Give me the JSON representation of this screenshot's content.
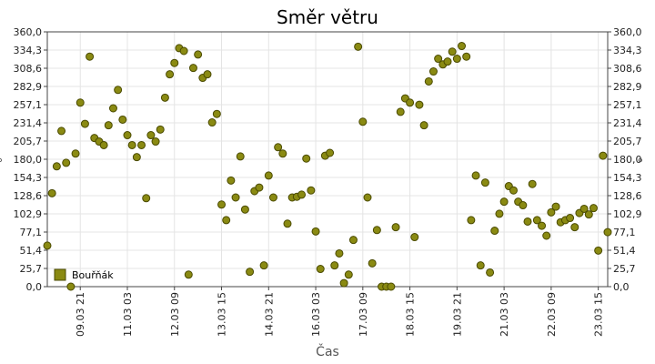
{
  "chart_data": {
    "type": "scatter",
    "title": "Směr větru",
    "xlabel": "Čas",
    "ylabel": "°",
    "ylim": [
      0,
      360
    ],
    "xlim": [
      "2021-03-09 00:00",
      "2021-03-23 21:00"
    ],
    "y_ticks": [
      "0,0",
      "25,7",
      "51,4",
      "77,1",
      "102,9",
      "128,6",
      "154,3",
      "180,0",
      "205,7",
      "231,4",
      "257,1",
      "282,9",
      "308,6",
      "334,3",
      "360,0"
    ],
    "x_ticks": [
      {
        "label": "09.03 21",
        "t": "2021-03-09 21:00"
      },
      {
        "label": "11.03 03",
        "t": "2021-03-11 03:00"
      },
      {
        "label": "12.03 09",
        "t": "2021-03-12 09:00"
      },
      {
        "label": "13.03 15",
        "t": "2021-03-13 15:00"
      },
      {
        "label": "14.03 21",
        "t": "2021-03-14 21:00"
      },
      {
        "label": "16.03 03",
        "t": "2021-03-16 03:00"
      },
      {
        "label": "17.03 09",
        "t": "2021-03-17 09:00"
      },
      {
        "label": "18.03 15",
        "t": "2021-03-18 15:00"
      },
      {
        "label": "19.03 21",
        "t": "2021-03-19 21:00"
      },
      {
        "label": "21.03 03",
        "t": "2021-03-21 03:00"
      },
      {
        "label": "22.03 09",
        "t": "2021-03-22 09:00"
      },
      {
        "label": "23.03 15",
        "t": "2021-03-23 15:00"
      }
    ],
    "grid": true,
    "legend": "bottom-left",
    "colors": {
      "marker_fill": "#8a8a12",
      "marker_stroke": "#4a4a00"
    },
    "series": [
      {
        "name": "Bouřňák",
        "points": [
          {
            "t": "2021-03-09 00:00",
            "v": 58
          },
          {
            "t": "2021-03-09 03:00",
            "v": 132
          },
          {
            "t": "2021-03-09 06:00",
            "v": 170
          },
          {
            "t": "2021-03-09 09:00",
            "v": 220
          },
          {
            "t": "2021-03-09 12:00",
            "v": 175
          },
          {
            "t": "2021-03-09 15:00",
            "v": 0
          },
          {
            "t": "2021-03-09 18:00",
            "v": 188
          },
          {
            "t": "2021-03-09 21:00",
            "v": 260
          },
          {
            "t": "2021-03-10 00:00",
            "v": 230
          },
          {
            "t": "2021-03-10 03:00",
            "v": 325
          },
          {
            "t": "2021-03-10 06:00",
            "v": 210
          },
          {
            "t": "2021-03-10 09:00",
            "v": 205
          },
          {
            "t": "2021-03-10 12:00",
            "v": 200
          },
          {
            "t": "2021-03-10 15:00",
            "v": 228
          },
          {
            "t": "2021-03-10 18:00",
            "v": 252
          },
          {
            "t": "2021-03-10 21:00",
            "v": 278
          },
          {
            "t": "2021-03-11 00:00",
            "v": 236
          },
          {
            "t": "2021-03-11 03:00",
            "v": 214
          },
          {
            "t": "2021-03-11 06:00",
            "v": 200
          },
          {
            "t": "2021-03-11 09:00",
            "v": 183
          },
          {
            "t": "2021-03-11 12:00",
            "v": 200
          },
          {
            "t": "2021-03-11 15:00",
            "v": 125
          },
          {
            "t": "2021-03-11 18:00",
            "v": 214
          },
          {
            "t": "2021-03-11 21:00",
            "v": 205
          },
          {
            "t": "2021-03-12 00:00",
            "v": 222
          },
          {
            "t": "2021-03-12 03:00",
            "v": 267
          },
          {
            "t": "2021-03-12 06:00",
            "v": 300
          },
          {
            "t": "2021-03-12 09:00",
            "v": 316
          },
          {
            "t": "2021-03-12 12:00",
            "v": 337
          },
          {
            "t": "2021-03-12 15:00",
            "v": 333
          },
          {
            "t": "2021-03-12 18:00",
            "v": 17
          },
          {
            "t": "2021-03-12 21:00",
            "v": 309
          },
          {
            "t": "2021-03-13 00:00",
            "v": 328
          },
          {
            "t": "2021-03-13 03:00",
            "v": 295
          },
          {
            "t": "2021-03-13 06:00",
            "v": 300
          },
          {
            "t": "2021-03-13 09:00",
            "v": 232
          },
          {
            "t": "2021-03-13 12:00",
            "v": 244
          },
          {
            "t": "2021-03-13 15:00",
            "v": 116
          },
          {
            "t": "2021-03-13 18:00",
            "v": 94
          },
          {
            "t": "2021-03-13 21:00",
            "v": 150
          },
          {
            "t": "2021-03-14 00:00",
            "v": 126
          },
          {
            "t": "2021-03-14 03:00",
            "v": 184
          },
          {
            "t": "2021-03-14 06:00",
            "v": 109
          },
          {
            "t": "2021-03-14 09:00",
            "v": 21
          },
          {
            "t": "2021-03-14 12:00",
            "v": 135
          },
          {
            "t": "2021-03-14 15:00",
            "v": 140
          },
          {
            "t": "2021-03-14 18:00",
            "v": 30
          },
          {
            "t": "2021-03-14 21:00",
            "v": 157
          },
          {
            "t": "2021-03-15 00:00",
            "v": 126
          },
          {
            "t": "2021-03-15 03:00",
            "v": 197
          },
          {
            "t": "2021-03-15 06:00",
            "v": 188
          },
          {
            "t": "2021-03-15 09:00",
            "v": 89
          },
          {
            "t": "2021-03-15 12:00",
            "v": 126
          },
          {
            "t": "2021-03-15 15:00",
            "v": 127
          },
          {
            "t": "2021-03-15 18:00",
            "v": 130
          },
          {
            "t": "2021-03-15 21:00",
            "v": 181
          },
          {
            "t": "2021-03-16 00:00",
            "v": 136
          },
          {
            "t": "2021-03-16 03:00",
            "v": 78
          },
          {
            "t": "2021-03-16 06:00",
            "v": 25
          },
          {
            "t": "2021-03-16 09:00",
            "v": 185
          },
          {
            "t": "2021-03-16 12:00",
            "v": 189
          },
          {
            "t": "2021-03-16 15:00",
            "v": 30
          },
          {
            "t": "2021-03-16 18:00",
            "v": 47
          },
          {
            "t": "2021-03-16 21:00",
            "v": 5
          },
          {
            "t": "2021-03-17 00:00",
            "v": 17
          },
          {
            "t": "2021-03-17 03:00",
            "v": 66
          },
          {
            "t": "2021-03-17 06:00",
            "v": 339
          },
          {
            "t": "2021-03-17 09:00",
            "v": 233
          },
          {
            "t": "2021-03-17 12:00",
            "v": 126
          },
          {
            "t": "2021-03-17 15:00",
            "v": 33
          },
          {
            "t": "2021-03-17 18:00",
            "v": 80
          },
          {
            "t": "2021-03-17 21:00",
            "v": 0
          },
          {
            "t": "2021-03-18 00:00",
            "v": 0
          },
          {
            "t": "2021-03-18 03:00",
            "v": 0
          },
          {
            "t": "2021-03-18 06:00",
            "v": 84
          },
          {
            "t": "2021-03-18 09:00",
            "v": 247
          },
          {
            "t": "2021-03-18 12:00",
            "v": 266
          },
          {
            "t": "2021-03-18 15:00",
            "v": 260
          },
          {
            "t": "2021-03-18 18:00",
            "v": 70
          },
          {
            "t": "2021-03-18 21:00",
            "v": 257
          },
          {
            "t": "2021-03-19 00:00",
            "v": 228
          },
          {
            "t": "2021-03-19 03:00",
            "v": 290
          },
          {
            "t": "2021-03-19 06:00",
            "v": 304
          },
          {
            "t": "2021-03-19 09:00",
            "v": 322
          },
          {
            "t": "2021-03-19 12:00",
            "v": 314
          },
          {
            "t": "2021-03-19 15:00",
            "v": 318
          },
          {
            "t": "2021-03-19 18:00",
            "v": 332
          },
          {
            "t": "2021-03-19 21:00",
            "v": 322
          },
          {
            "t": "2021-03-20 00:00",
            "v": 340
          },
          {
            "t": "2021-03-20 03:00",
            "v": 325
          },
          {
            "t": "2021-03-20 06:00",
            "v": 94
          },
          {
            "t": "2021-03-20 09:00",
            "v": 157
          },
          {
            "t": "2021-03-20 12:00",
            "v": 30
          },
          {
            "t": "2021-03-20 15:00",
            "v": 147
          },
          {
            "t": "2021-03-20 18:00",
            "v": 20
          },
          {
            "t": "2021-03-20 21:00",
            "v": 79
          },
          {
            "t": "2021-03-21 00:00",
            "v": 103
          },
          {
            "t": "2021-03-21 03:00",
            "v": 120
          },
          {
            "t": "2021-03-21 06:00",
            "v": 142
          },
          {
            "t": "2021-03-21 09:00",
            "v": 136
          },
          {
            "t": "2021-03-21 12:00",
            "v": 120
          },
          {
            "t": "2021-03-21 15:00",
            "v": 115
          },
          {
            "t": "2021-03-21 18:00",
            "v": 92
          },
          {
            "t": "2021-03-21 21:00",
            "v": 145
          },
          {
            "t": "2021-03-22 00:00",
            "v": 94
          },
          {
            "t": "2021-03-22 03:00",
            "v": 86
          },
          {
            "t": "2021-03-22 06:00",
            "v": 72
          },
          {
            "t": "2021-03-22 09:00",
            "v": 105
          },
          {
            "t": "2021-03-22 12:00",
            "v": 113
          },
          {
            "t": "2021-03-22 15:00",
            "v": 91
          },
          {
            "t": "2021-03-22 18:00",
            "v": 94
          },
          {
            "t": "2021-03-22 21:00",
            "v": 97
          },
          {
            "t": "2021-03-23 00:00",
            "v": 84
          },
          {
            "t": "2021-03-23 03:00",
            "v": 104
          },
          {
            "t": "2021-03-23 06:00",
            "v": 110
          },
          {
            "t": "2021-03-23 09:00",
            "v": 102
          },
          {
            "t": "2021-03-23 12:00",
            "v": 111
          },
          {
            "t": "2021-03-23 15:00",
            "v": 51
          },
          {
            "t": "2021-03-23 18:00",
            "v": 185
          },
          {
            "t": "2021-03-23 21:00",
            "v": 77
          }
        ]
      }
    ]
  }
}
